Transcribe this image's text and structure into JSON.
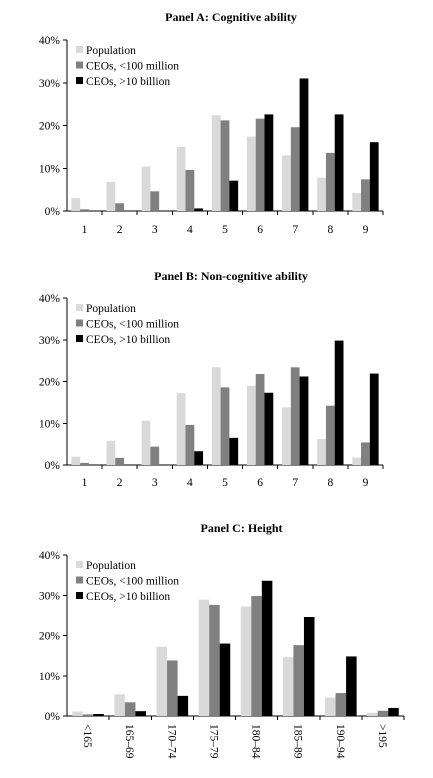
{
  "chart_data": [
    {
      "type": "bar",
      "title": "Panel A: Cognitive ability",
      "categories": [
        "1",
        "2",
        "3",
        "4",
        "5",
        "6",
        "7",
        "8",
        "9"
      ],
      "ylim": [
        0,
        40
      ],
      "yticks": [
        "0%",
        "10%",
        "20%",
        "30%",
        "40%"
      ],
      "legend_position": "top-left",
      "grid": false,
      "series": [
        {
          "name": "Population",
          "color": "#d9d9d9",
          "values": [
            3,
            6.8,
            10.4,
            15,
            22.4,
            17.4,
            13,
            7.8,
            4.2
          ]
        },
        {
          "name": "CEOs, <100 million",
          "color": "#808080",
          "values": [
            0.4,
            1.8,
            4.6,
            9.6,
            21.2,
            21.6,
            19.6,
            13.6,
            7.4
          ]
        },
        {
          "name": "CEOs, >10 billion",
          "color": "#000000",
          "values": [
            0,
            0,
            0,
            0.6,
            7.1,
            22.6,
            31,
            22.6,
            16.1
          ]
        }
      ]
    },
    {
      "type": "bar",
      "title": "Panel B: Non-cognitive ability",
      "categories": [
        "1",
        "2",
        "3",
        "4",
        "5",
        "6",
        "7",
        "8",
        "9"
      ],
      "ylim": [
        0,
        40
      ],
      "yticks": [
        "0%",
        "10%",
        "20%",
        "30%",
        "40%"
      ],
      "legend_position": "top-left",
      "grid": false,
      "series": [
        {
          "name": "Population",
          "color": "#d9d9d9",
          "values": [
            2,
            5.8,
            10.6,
            17.2,
            23.4,
            19,
            13.8,
            6.2,
            1.8
          ]
        },
        {
          "name": "CEOs, <100 million",
          "color": "#808080",
          "values": [
            0.5,
            1.7,
            4.4,
            9.6,
            18.6,
            21.8,
            23.4,
            14.2,
            5.4
          ]
        },
        {
          "name": "CEOs, >10 billion",
          "color": "#000000",
          "values": [
            0,
            0,
            0,
            3.3,
            6.5,
            17.3,
            21.2,
            29.8,
            21.9
          ]
        }
      ]
    },
    {
      "type": "bar",
      "title": "Panel C: Height",
      "categories": [
        "<165",
        "165–69",
        "170–74",
        "175–79",
        "180–84",
        "185–89",
        "190–94",
        ">195"
      ],
      "ylim": [
        0,
        40
      ],
      "yticks": [
        "0%",
        "10%",
        "20%",
        "30%",
        "40%"
      ],
      "legend_position": "top-left",
      "grid": false,
      "series": [
        {
          "name": "Population",
          "color": "#d9d9d9",
          "values": [
            1.1,
            5.4,
            17.2,
            28.9,
            27.2,
            14.6,
            4.6,
            0.8
          ]
        },
        {
          "name": "CEOs, <100 million",
          "color": "#808080",
          "values": [
            0.4,
            3.4,
            13.8,
            27.6,
            29.8,
            17.6,
            5.7,
            1.3
          ]
        },
        {
          "name": "CEOs, >10 billion",
          "color": "#000000",
          "values": [
            0.5,
            1.2,
            5,
            18,
            33.6,
            24.6,
            14.8,
            2
          ]
        }
      ]
    }
  ]
}
